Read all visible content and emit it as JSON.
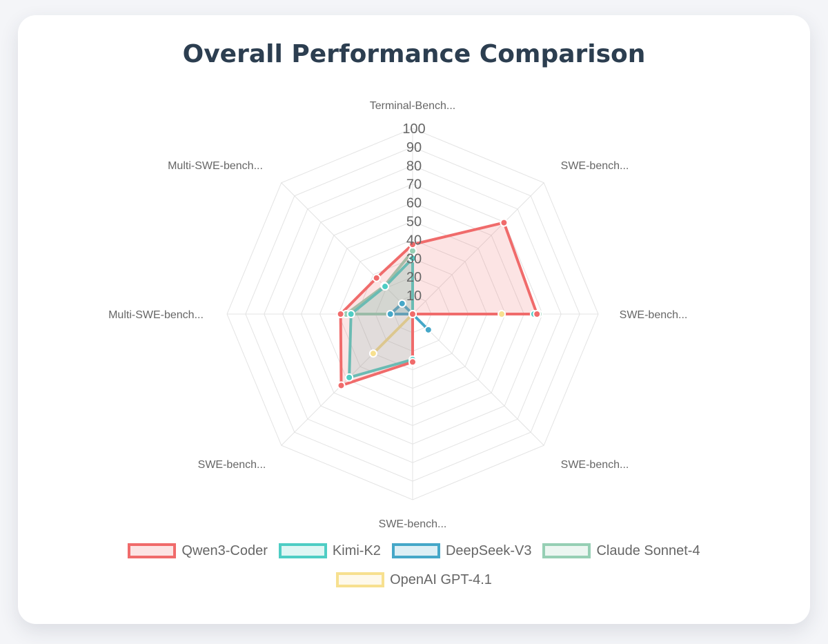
{
  "page": {
    "title": "Overall Performance Comparison"
  },
  "chart_data": {
    "type": "radar",
    "title": "Overall Performance Comparison",
    "categories": [
      "Terminal-Bench...",
      "SWE-bench...",
      "SWE-bench...",
      "SWE-bench...",
      "SWE-bench...",
      "SWE-bench...",
      "Multi-SWE-bench...",
      "Multi-SWE-bench..."
    ],
    "r_range": [
      0,
      100
    ],
    "r_ticks": [
      "10",
      "20",
      "30",
      "40",
      "50",
      "60",
      "70",
      "80",
      "90",
      "100"
    ],
    "grid": true,
    "legend_position": "bottom",
    "series": [
      {
        "name": "Qwen3-Coder",
        "values": [
          37.5,
          69.6,
          67.0,
          0,
          25.8,
          54.4,
          38.8,
          27.5
        ],
        "color": "#f06b6b"
      },
      {
        "name": "Kimi-K2",
        "values": [
          30.0,
          0,
          65.4,
          0,
          24.5,
          48.3,
          33.2,
          21.0
        ],
        "color": "#4ecdc4"
      },
      {
        "name": "DeepSeek-V3",
        "values": [
          0,
          0,
          0,
          12.0,
          0,
          0,
          12.0,
          8.0
        ],
        "color": "#45a7c8"
      },
      {
        "name": "Claude Sonnet-4",
        "values": [
          34.0,
          0,
          68.0,
          0,
          26.0,
          0,
          35.8,
          21.5
        ],
        "color": "#96cfb4"
      },
      {
        "name": "OpenAI GPT-4.1",
        "values": [
          0,
          0,
          48.0,
          0,
          0,
          30.0,
          0,
          0
        ],
        "color": "#f7e08f"
      }
    ]
  }
}
